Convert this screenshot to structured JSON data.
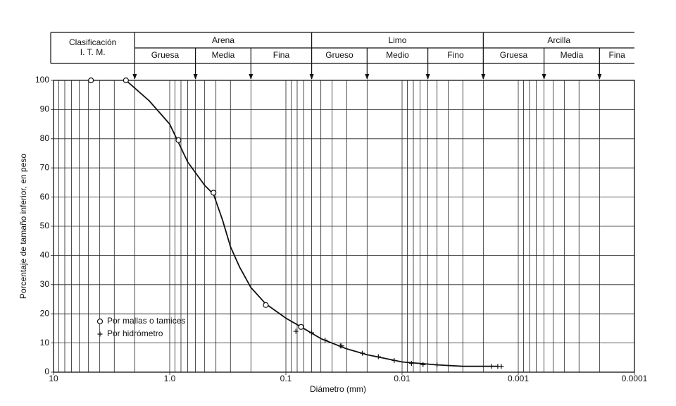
{
  "chart_data": {
    "type": "scatter",
    "x_label": "Diámetro (mm)",
    "y_label": "Porcentaje de tamaño inferior, en peso",
    "xlim": [
      10,
      0.0001
    ],
    "ylim": [
      0,
      100
    ],
    "log_x": true,
    "grid": true,
    "minor_grid_multiples": [
      2,
      3,
      4,
      5,
      6,
      7,
      8,
      9
    ],
    "xticks": [
      10,
      {
        "value": 1,
        "label": "1.0"
      },
      0.1,
      0.01,
      0.001,
      0.0001
    ],
    "yticks": [
      0,
      10,
      20,
      30,
      40,
      50,
      60,
      70,
      80,
      90,
      100
    ],
    "series": [
      {
        "name": "Por mallas o tamices",
        "marker": "circle",
        "color": "#111",
        "x": [
          4.76,
          2.38,
          0.84,
          0.42,
          0.149,
          0.074
        ],
        "y": [
          100,
          100,
          79.5,
          61.5,
          23,
          15.5
        ]
      },
      {
        "name": "Por hidrómetro",
        "marker": "plus",
        "color": "#111",
        "x": [
          0.082,
          0.06,
          0.046,
          0.034,
          0.033,
          0.022,
          0.016,
          0.0117,
          0.0083,
          0.0066,
          0.005,
          0.0017,
          0.0015,
          0.0014
        ],
        "y": [
          14,
          13.5,
          11,
          9,
          9,
          6.5,
          5.3,
          4,
          3,
          2.6,
          2.5,
          2,
          2,
          2
        ]
      }
    ],
    "curve": {
      "color": "#111",
      "x": [
        2.38,
        1.5,
        1.0,
        0.7,
        0.5,
        0.42,
        0.35,
        0.3,
        0.25,
        0.2,
        0.15,
        0.1,
        0.074,
        0.05,
        0.03,
        0.02,
        0.01,
        0.005,
        0.003,
        0.0015
      ],
      "y": [
        100,
        93,
        85,
        72,
        64,
        61,
        52,
        43,
        36,
        29,
        23.5,
        18.5,
        15.5,
        11.5,
        8,
        6,
        3.5,
        2.5,
        2,
        2
      ]
    },
    "legend": "lower-left",
    "classification": {
      "title_lines": [
        "Clasificación",
        "I. T. M."
      ],
      "boundaries": [
        2,
        0.6,
        0.2,
        0.06,
        0.02,
        0.006,
        0.002,
        0.0006,
        0.0002
      ],
      "groups": [
        {
          "name": "Arena",
          "sub": [
            "Gruesa",
            "Media",
            "Fina"
          ]
        },
        {
          "name": "Limo",
          "sub": [
            "Grueso",
            "Medio",
            "Fino"
          ]
        },
        {
          "name": "Arcilla",
          "sub": [
            "Gruesa",
            "Media",
            "Fina"
          ]
        }
      ]
    }
  }
}
